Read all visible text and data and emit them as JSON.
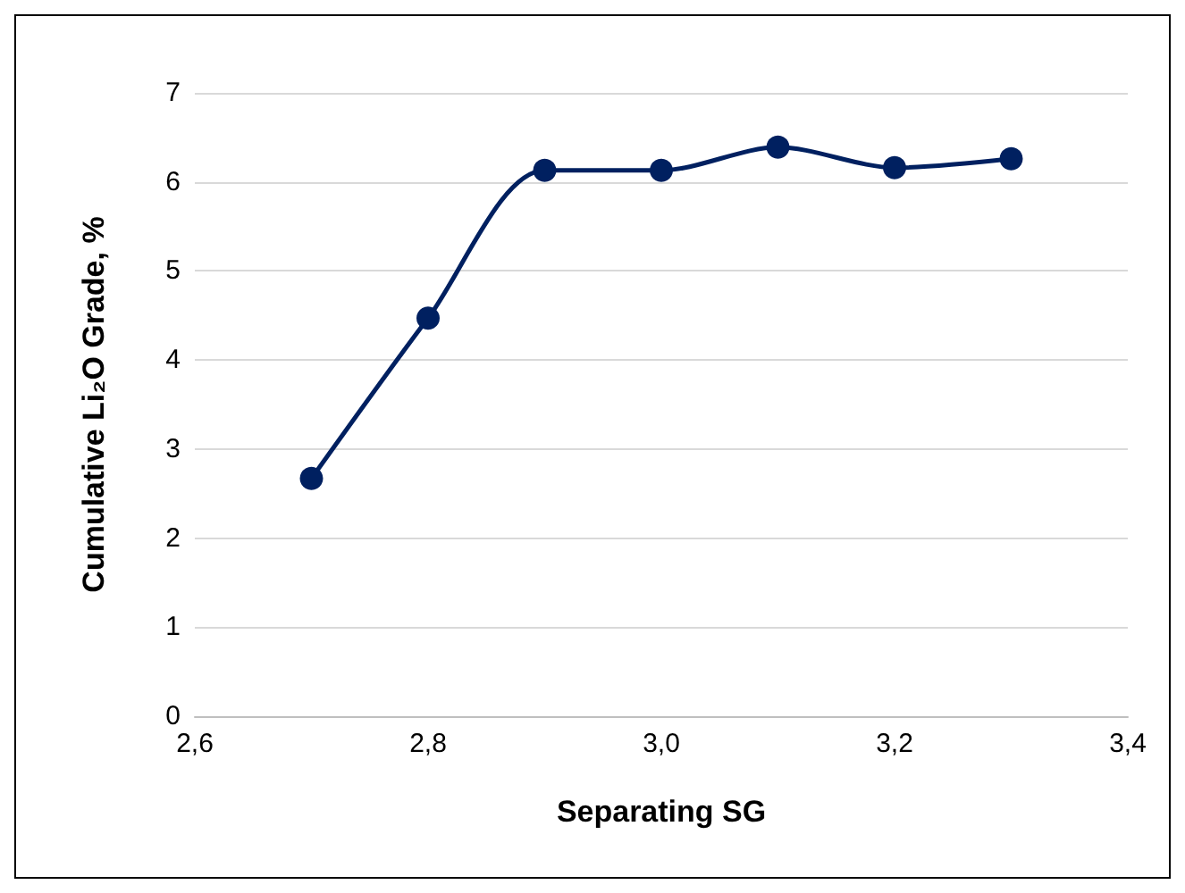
{
  "chart_data": {
    "type": "line",
    "xlabel": "Separating SG",
    "ylabel": "Cumulative Li₂O Grade, %",
    "x": [
      2.7,
      2.8,
      2.9,
      3.0,
      3.1,
      3.2,
      3.3
    ],
    "series": [
      {
        "color": "#002060",
        "values": [
          2.67,
          4.47,
          6.13,
          6.13,
          6.39,
          6.16,
          6.26
        ]
      }
    ],
    "xlim": [
      2.6,
      3.4
    ],
    "xticks": [
      {
        "value": 2.6,
        "label": "2,6"
      },
      {
        "value": 2.8,
        "label": "2,8"
      },
      {
        "value": 3.0,
        "label": "3,0"
      },
      {
        "value": 3.2,
        "label": "3,2"
      },
      {
        "value": 3.4,
        "label": "3,4"
      }
    ],
    "ylim": [
      0,
      7
    ],
    "yticks": [
      0,
      1,
      2,
      3,
      4,
      5,
      6,
      7
    ],
    "grid": "y",
    "marker": "circle",
    "line_style": "solid"
  }
}
